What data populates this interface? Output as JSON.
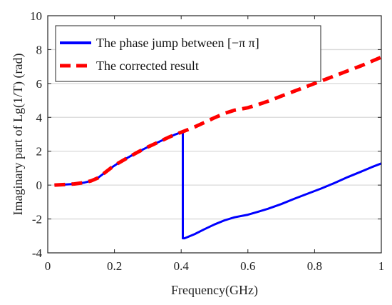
{
  "chart_data": {
    "type": "line",
    "xlabel": "Frequency(GHz)",
    "ylabel": "Imaginary part of  Lg(1/T) (rad)",
    "xlim": [
      0,
      1
    ],
    "ylim": [
      -4,
      10
    ],
    "xticks": [
      "0",
      "0.2",
      "0.4",
      "0.6",
      "0.8",
      "1"
    ],
    "xtick_values": [
      0,
      0.2,
      0.4,
      0.6,
      0.8,
      1.0
    ],
    "yticks": [
      "-4",
      "-2",
      "0",
      "2",
      "4",
      "6",
      "8",
      "10"
    ],
    "ytick_values": [
      -4,
      -2,
      0,
      2,
      4,
      6,
      8,
      10
    ],
    "grid": "horizontal",
    "legend_position": "top-left",
    "series": [
      {
        "name": "The phase jump between [−π π]",
        "color": "#0000ff",
        "style": "solid",
        "x": [
          0.02,
          0.05,
          0.08,
          0.11,
          0.13,
          0.15,
          0.17,
          0.19,
          0.21,
          0.24,
          0.27,
          0.3,
          0.33,
          0.36,
          0.38,
          0.4,
          0.405,
          0.405,
          0.41,
          0.44,
          0.47,
          0.5,
          0.53,
          0.56,
          0.6,
          0.63,
          0.66,
          0.7,
          0.74,
          0.78,
          0.82,
          0.86,
          0.9,
          0.94,
          0.97,
          1.0
        ],
        "y": [
          0.0,
          0.03,
          0.07,
          0.15,
          0.25,
          0.42,
          0.72,
          1.02,
          1.28,
          1.62,
          1.95,
          2.25,
          2.52,
          2.8,
          2.97,
          3.12,
          3.14,
          -3.14,
          -3.14,
          -2.9,
          -2.6,
          -2.32,
          -2.08,
          -1.9,
          -1.75,
          -1.58,
          -1.4,
          -1.12,
          -0.8,
          -0.5,
          -0.2,
          0.13,
          0.48,
          0.8,
          1.05,
          1.28
        ]
      },
      {
        "name": "The corrected result",
        "color": "#ff0000",
        "style": "dashed",
        "x": [
          0.02,
          0.05,
          0.08,
          0.11,
          0.13,
          0.15,
          0.17,
          0.19,
          0.21,
          0.24,
          0.27,
          0.3,
          0.33,
          0.36,
          0.38,
          0.4,
          0.44,
          0.47,
          0.5,
          0.53,
          0.56,
          0.6,
          0.63,
          0.66,
          0.7,
          0.74,
          0.78,
          0.82,
          0.86,
          0.9,
          0.94,
          0.97,
          1.0
        ],
        "y": [
          0.0,
          0.03,
          0.07,
          0.15,
          0.25,
          0.42,
          0.72,
          1.02,
          1.28,
          1.62,
          1.95,
          2.25,
          2.52,
          2.8,
          2.97,
          3.12,
          3.43,
          3.7,
          3.98,
          4.23,
          4.42,
          4.57,
          4.75,
          4.95,
          5.25,
          5.55,
          5.85,
          6.15,
          6.45,
          6.75,
          7.05,
          7.3,
          7.55
        ]
      }
    ]
  }
}
